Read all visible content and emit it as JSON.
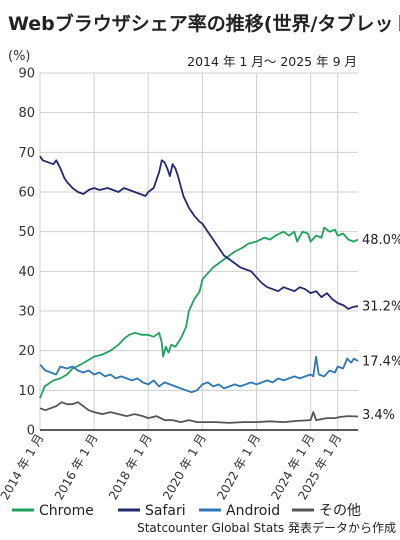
{
  "chart_data": {
    "type": "line",
    "title": "Webブラウザシェア率の推移(世界/タブレット)",
    "period": "2014 年 1 月～ 2025 年 9 月",
    "ylabel": "(%)",
    "ylim": [
      0,
      90
    ],
    "yticks": [
      "0",
      "10",
      "20",
      "30",
      "40",
      "50",
      "60",
      "70",
      "80",
      "90"
    ],
    "x_range": [
      2014.0,
      2025.75
    ],
    "xticks": [
      {
        "x": 2014.0,
        "label": "2014 年 1 月"
      },
      {
        "x": 2016.0,
        "label": "2016 年 1 月"
      },
      {
        "x": 2018.0,
        "label": "2018 年 1 月"
      },
      {
        "x": 2020.0,
        "label": "2020 年 1 月"
      },
      {
        "x": 2022.0,
        "label": "2022 年 1 月"
      },
      {
        "x": 2024.0,
        "label": "2024 年 1 月"
      },
      {
        "x": 2025.0,
        "label": "2025 年 1 月"
      }
    ],
    "grid": true,
    "legend_position": "bottom",
    "source": "Statcounter Global Stats 発表データから作成",
    "series": [
      {
        "name": "Chrome",
        "color": "#1fa35c",
        "end_label": "48.0%",
        "points": [
          [
            2014.0,
            8
          ],
          [
            2014.17,
            11
          ],
          [
            2014.5,
            12.5
          ],
          [
            2014.75,
            13
          ],
          [
            2015.0,
            14
          ],
          [
            2015.2,
            15.5
          ],
          [
            2015.5,
            16.5
          ],
          [
            2015.75,
            17.5
          ],
          [
            2016.0,
            18.5
          ],
          [
            2016.3,
            19
          ],
          [
            2016.6,
            20
          ],
          [
            2016.9,
            21.5
          ],
          [
            2017.1,
            23
          ],
          [
            2017.3,
            24
          ],
          [
            2017.5,
            24.5
          ],
          [
            2017.75,
            24
          ],
          [
            2018.0,
            24
          ],
          [
            2018.2,
            23.5
          ],
          [
            2018.4,
            24.5
          ],
          [
            2018.5,
            22
          ],
          [
            2018.55,
            18.5
          ],
          [
            2018.65,
            21
          ],
          [
            2018.75,
            19.5
          ],
          [
            2018.85,
            21.5
          ],
          [
            2019.0,
            21
          ],
          [
            2019.2,
            23
          ],
          [
            2019.4,
            26
          ],
          [
            2019.5,
            30
          ],
          [
            2019.7,
            33
          ],
          [
            2019.9,
            35
          ],
          [
            2020.0,
            38
          ],
          [
            2020.2,
            39.5
          ],
          [
            2020.4,
            41
          ],
          [
            2020.6,
            42
          ],
          [
            2020.8,
            43
          ],
          [
            2021.0,
            44
          ],
          [
            2021.2,
            45
          ],
          [
            2021.5,
            46
          ],
          [
            2021.7,
            47
          ],
          [
            2022.0,
            47.5
          ],
          [
            2022.3,
            48.5
          ],
          [
            2022.5,
            48
          ],
          [
            2022.7,
            49
          ],
          [
            2023.0,
            50
          ],
          [
            2023.2,
            49
          ],
          [
            2023.4,
            50
          ],
          [
            2023.5,
            47.5
          ],
          [
            2023.7,
            50
          ],
          [
            2023.9,
            49.5
          ],
          [
            2024.0,
            47.5
          ],
          [
            2024.2,
            49
          ],
          [
            2024.4,
            48.5
          ],
          [
            2024.5,
            51
          ],
          [
            2024.7,
            50
          ],
          [
            2024.9,
            50.5
          ],
          [
            2025.0,
            49
          ],
          [
            2025.2,
            49.5
          ],
          [
            2025.4,
            48
          ],
          [
            2025.6,
            47.5
          ],
          [
            2025.75,
            48
          ]
        ]
      },
      {
        "name": "Safari",
        "color": "#232a6e",
        "end_label": "31.2%",
        "points": [
          [
            2014.0,
            69
          ],
          [
            2014.1,
            68
          ],
          [
            2014.3,
            67.5
          ],
          [
            2014.5,
            67
          ],
          [
            2014.6,
            68
          ],
          [
            2014.75,
            66
          ],
          [
            2014.9,
            63.5
          ],
          [
            2015.0,
            62.5
          ],
          [
            2015.2,
            61
          ],
          [
            2015.4,
            60
          ],
          [
            2015.6,
            59.5
          ],
          [
            2015.8,
            60.5
          ],
          [
            2016.0,
            61
          ],
          [
            2016.2,
            60.5
          ],
          [
            2016.5,
            61
          ],
          [
            2016.7,
            60.5
          ],
          [
            2016.9,
            60
          ],
          [
            2017.1,
            61
          ],
          [
            2017.3,
            60.5
          ],
          [
            2017.5,
            60
          ],
          [
            2017.7,
            59.5
          ],
          [
            2017.9,
            59
          ],
          [
            2018.0,
            60
          ],
          [
            2018.2,
            61
          ],
          [
            2018.4,
            65
          ],
          [
            2018.5,
            68
          ],
          [
            2018.6,
            67.5
          ],
          [
            2018.7,
            66
          ],
          [
            2018.8,
            64
          ],
          [
            2018.9,
            67
          ],
          [
            2019.0,
            66
          ],
          [
            2019.1,
            64
          ],
          [
            2019.3,
            59
          ],
          [
            2019.5,
            56
          ],
          [
            2019.7,
            54
          ],
          [
            2019.9,
            52.5
          ],
          [
            2020.0,
            52
          ],
          [
            2020.2,
            50
          ],
          [
            2020.4,
            48
          ],
          [
            2020.6,
            46
          ],
          [
            2020.8,
            44
          ],
          [
            2021.0,
            43
          ],
          [
            2021.2,
            42
          ],
          [
            2021.4,
            41
          ],
          [
            2021.6,
            40.5
          ],
          [
            2021.8,
            40
          ],
          [
            2022.0,
            38.5
          ],
          [
            2022.2,
            37
          ],
          [
            2022.4,
            36
          ],
          [
            2022.6,
            35.5
          ],
          [
            2022.8,
            35
          ],
          [
            2023.0,
            36
          ],
          [
            2023.2,
            35.5
          ],
          [
            2023.4,
            35
          ],
          [
            2023.6,
            36
          ],
          [
            2023.8,
            35.5
          ],
          [
            2024.0,
            34.5
          ],
          [
            2024.2,
            35
          ],
          [
            2024.4,
            33.5
          ],
          [
            2024.6,
            34.5
          ],
          [
            2024.8,
            33
          ],
          [
            2025.0,
            32
          ],
          [
            2025.2,
            31.5
          ],
          [
            2025.4,
            30.5
          ],
          [
            2025.55,
            31
          ],
          [
            2025.75,
            31.2
          ]
        ]
      },
      {
        "name": "Android",
        "color": "#2e78b3",
        "end_label": "17.4%",
        "points": [
          [
            2014.0,
            16.5
          ],
          [
            2014.2,
            15
          ],
          [
            2014.4,
            14.5
          ],
          [
            2014.6,
            14
          ],
          [
            2014.75,
            16
          ],
          [
            2015.0,
            15.5
          ],
          [
            2015.2,
            16
          ],
          [
            2015.4,
            15
          ],
          [
            2015.6,
            14.5
          ],
          [
            2015.8,
            15
          ],
          [
            2016.0,
            14
          ],
          [
            2016.2,
            14.5
          ],
          [
            2016.4,
            13.5
          ],
          [
            2016.6,
            14
          ],
          [
            2016.8,
            13
          ],
          [
            2017.0,
            13.5
          ],
          [
            2017.2,
            13
          ],
          [
            2017.4,
            12.5
          ],
          [
            2017.6,
            13
          ],
          [
            2017.8,
            12
          ],
          [
            2018.0,
            11.5
          ],
          [
            2018.2,
            12.5
          ],
          [
            2018.4,
            11
          ],
          [
            2018.6,
            12
          ],
          [
            2018.8,
            11.5
          ],
          [
            2019.0,
            11
          ],
          [
            2019.2,
            10.5
          ],
          [
            2019.4,
            10
          ],
          [
            2019.6,
            9.5
          ],
          [
            2019.8,
            10
          ],
          [
            2020.0,
            11.5
          ],
          [
            2020.2,
            12
          ],
          [
            2020.4,
            11
          ],
          [
            2020.6,
            11.5
          ],
          [
            2020.8,
            10.5
          ],
          [
            2021.0,
            11
          ],
          [
            2021.2,
            11.5
          ],
          [
            2021.4,
            11
          ],
          [
            2021.6,
            11.5
          ],
          [
            2021.8,
            12
          ],
          [
            2022.0,
            11.5
          ],
          [
            2022.2,
            12
          ],
          [
            2022.4,
            12.5
          ],
          [
            2022.6,
            12
          ],
          [
            2022.8,
            13
          ],
          [
            2023.0,
            12.5
          ],
          [
            2023.2,
            13
          ],
          [
            2023.4,
            13.5
          ],
          [
            2023.6,
            13
          ],
          [
            2023.8,
            13.5
          ],
          [
            2024.0,
            14
          ],
          [
            2024.1,
            13.5
          ],
          [
            2024.2,
            18.5
          ],
          [
            2024.3,
            14
          ],
          [
            2024.5,
            13.5
          ],
          [
            2024.7,
            15
          ],
          [
            2024.9,
            14.5
          ],
          [
            2025.0,
            16
          ],
          [
            2025.2,
            15.5
          ],
          [
            2025.35,
            18
          ],
          [
            2025.5,
            17
          ],
          [
            2025.6,
            18
          ],
          [
            2025.75,
            17.4
          ]
        ]
      },
      {
        "name": "その他",
        "color": "#555555",
        "end_label": "3.4%",
        "points": [
          [
            2014.0,
            5.5
          ],
          [
            2014.2,
            5
          ],
          [
            2014.4,
            5.5
          ],
          [
            2014.6,
            6
          ],
          [
            2014.8,
            7
          ],
          [
            2015.0,
            6.5
          ],
          [
            2015.2,
            6.5
          ],
          [
            2015.4,
            7
          ],
          [
            2015.6,
            6
          ],
          [
            2015.8,
            5
          ],
          [
            2016.0,
            4.5
          ],
          [
            2016.3,
            4
          ],
          [
            2016.6,
            4.5
          ],
          [
            2016.9,
            4
          ],
          [
            2017.2,
            3.5
          ],
          [
            2017.5,
            4
          ],
          [
            2017.8,
            3.5
          ],
          [
            2018.0,
            3
          ],
          [
            2018.3,
            3.5
          ],
          [
            2018.6,
            2.5
          ],
          [
            2018.9,
            2.5
          ],
          [
            2019.2,
            2
          ],
          [
            2019.5,
            2.5
          ],
          [
            2019.8,
            2
          ],
          [
            2020.0,
            2
          ],
          [
            2020.5,
            2
          ],
          [
            2021.0,
            1.8
          ],
          [
            2021.5,
            2
          ],
          [
            2022.0,
            2
          ],
          [
            2022.5,
            2.2
          ],
          [
            2023.0,
            2
          ],
          [
            2023.5,
            2.3
          ],
          [
            2024.0,
            2.5
          ],
          [
            2024.1,
            4.5
          ],
          [
            2024.2,
            2.5
          ],
          [
            2024.6,
            3
          ],
          [
            2024.9,
            3
          ],
          [
            2025.1,
            3.3
          ],
          [
            2025.4,
            3.5
          ],
          [
            2025.75,
            3.4
          ]
        ]
      }
    ]
  }
}
